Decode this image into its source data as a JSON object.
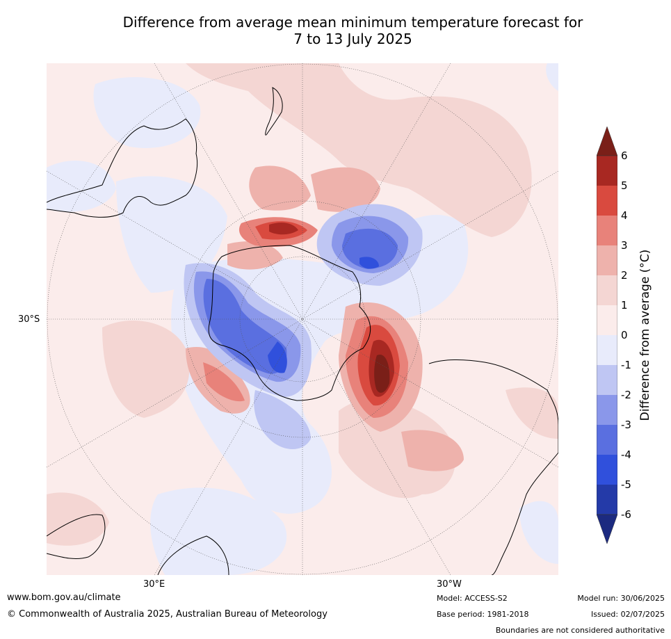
{
  "title": {
    "line1": "Difference from average mean minimum temperature forecast for",
    "line2": "7 to 13 July 2025"
  },
  "map": {
    "projection": "south polar stereographic",
    "lat_label": "30°S",
    "lon_labels": [
      "30°E",
      "30°W"
    ],
    "landmasses": [
      "Antarctica",
      "Australia",
      "New Zealand",
      "South America",
      "Africa"
    ]
  },
  "colorbar": {
    "label": "Difference from average (°C)",
    "ticks": [
      "6",
      "5",
      "4",
      "3",
      "2",
      "1",
      "0",
      "-1",
      "-2",
      "-3",
      "-4",
      "-5",
      "-6"
    ],
    "colors": {
      "gt6": "#7a1f18",
      "5to6": "#a82822",
      "4to5": "#d94a3f",
      "3to4": "#e8827a",
      "2to3": "#eeb2ac",
      "1to2": "#f4d6d3",
      "0to1": "#fbeceb",
      "m1to0": "#e8ebfb",
      "m2tom1": "#bfc6f3",
      "m3tom2": "#8a97ea",
      "m4tom3": "#5a6fe0",
      "m5tom4": "#3050dc",
      "m6tom5": "#243aa8",
      "ltm6": "#1c2a80"
    }
  },
  "footer": {
    "website": "www.bom.gov.au/climate",
    "copyright": "© Commonwealth of Australia 2025, Australian Bureau of Meteorology",
    "model": "Model: ACCESS-S2",
    "base_period": "Base period: 1981-2018",
    "model_run": "Model run: 30/06/2025",
    "issued": "Issued: 02/07/2025",
    "disclaimer": "Boundaries are not considered authoritative"
  }
}
